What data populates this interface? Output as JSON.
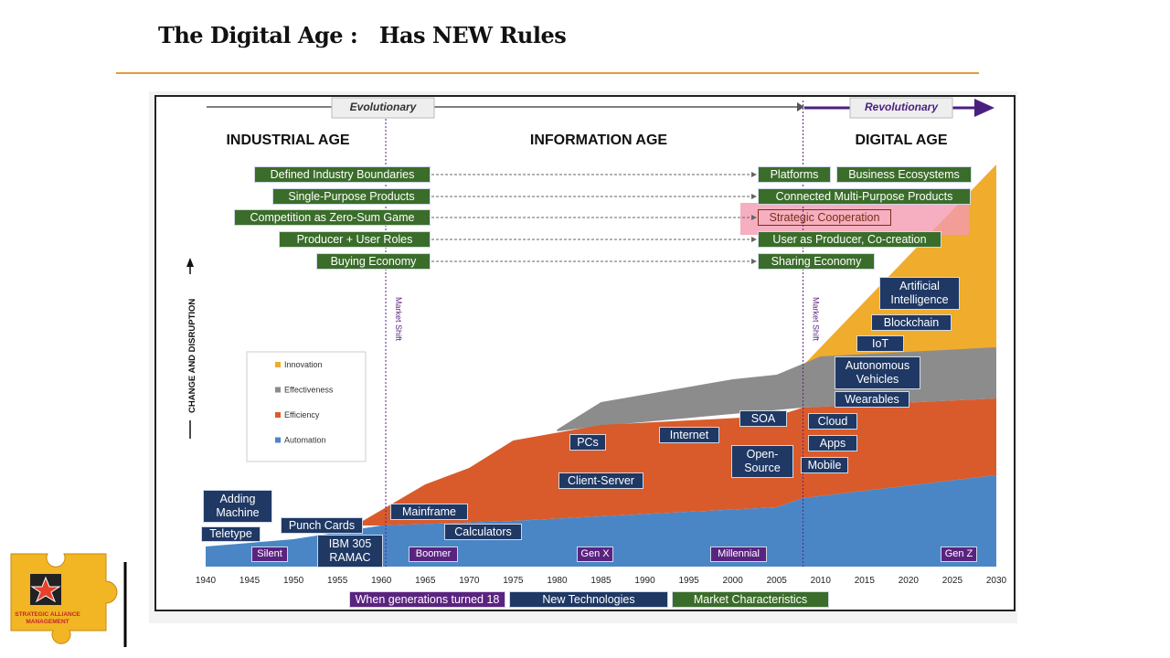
{
  "title": "The Digital Age :   Has NEW Rules",
  "figure": {
    "arrows": {
      "evolutionary": "Evolutionary",
      "revolutionary": "Revolutionary"
    },
    "eras": [
      "INDUSTRIAL AGE",
      "INFORMATION AGE",
      "DIGITAL AGE"
    ],
    "rules": [
      {
        "from": "Defined Industry Boundaries",
        "to": [
          "Platforms",
          "Business Ecosystems"
        ]
      },
      {
        "from": "Single-Purpose Products",
        "to": [
          "Connected Multi-Purpose Products"
        ]
      },
      {
        "from": "Competition as Zero-Sum Game",
        "to": [
          "Strategic Cooperation"
        ]
      },
      {
        "from": "Producer + User Roles",
        "to": [
          "User as Producer, Co-creation"
        ]
      },
      {
        "from": "Buying Economy",
        "to": [
          "Sharing Economy"
        ]
      }
    ],
    "y_axis_label": "CHANGE AND DISRUPTION",
    "market_shift": [
      "Market Shift",
      "Market Shift"
    ],
    "legend": [
      "Innovation",
      "Effectiveness",
      "Efficiency",
      "Automation"
    ],
    "technologies": [
      "Adding Machine",
      "Teletype",
      "Punch Cards",
      "IBM 305 RAMAC",
      "Mainframe",
      "Calculators",
      "PCs",
      "Client-Server",
      "Internet",
      "SOA",
      "Open-Source",
      "Cloud",
      "Apps",
      "Mobile",
      "Wearables",
      "Autonomous Vehicles",
      "IoT",
      "Blockchain",
      "Artificial Intelligence"
    ],
    "generations": [
      "Silent",
      "Boomer",
      "Gen X",
      "Millennial",
      "Gen Z"
    ],
    "x_ticks": [
      "1940",
      "1945",
      "1950",
      "1955",
      "1960",
      "1965",
      "1970",
      "1975",
      "1980",
      "1985",
      "1990",
      "1995",
      "2000",
      "2005",
      "2010",
      "2015",
      "2020",
      "2025",
      "2030"
    ],
    "key": [
      "When generations turned 18",
      "New Technologies",
      "Market Characteristics"
    ]
  },
  "logo": {
    "line1": "STRATEGIC ALLIANCE",
    "line2": "MANAGEMENT"
  }
}
